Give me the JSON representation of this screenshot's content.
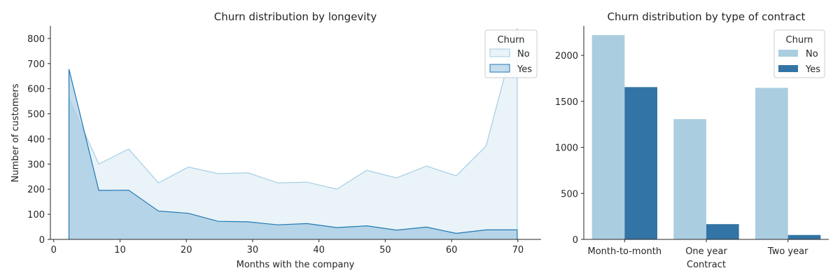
{
  "chart_data": [
    {
      "type": "area",
      "title": "Churn distribution by longevity",
      "xlabel": "Months with the company",
      "ylabel": "Number of customers",
      "xlim": [
        -0.5,
        73.5
      ],
      "ylim": [
        0,
        850
      ],
      "xticks": [
        0,
        10,
        20,
        30,
        40,
        50,
        60,
        70
      ],
      "yticks": [
        0,
        100,
        200,
        300,
        400,
        500,
        600,
        700,
        800
      ],
      "legend": {
        "title": "Churn",
        "placement": "top-right"
      },
      "x": [
        2.3,
        6.8,
        11.3,
        15.8,
        20.3,
        24.8,
        29.3,
        33.8,
        38.2,
        42.7,
        47.2,
        51.7,
        56.2,
        60.7,
        65.2,
        69.9
      ],
      "series": [
        {
          "name": "No",
          "color": "#a6cee3",
          "values": [
            560,
            300,
            360,
            225,
            288,
            262,
            265,
            225,
            228,
            200,
            275,
            245,
            292,
            253,
            372,
            840
          ]
        },
        {
          "name": "Yes",
          "color": "#1f78b4",
          "values": [
            678,
            195,
            196,
            113,
            104,
            72,
            70,
            58,
            63,
            47,
            54,
            37,
            49,
            24,
            38,
            38
          ]
        }
      ]
    },
    {
      "type": "bar",
      "title": "Churn distribution by type of contract",
      "xlabel": "Contract",
      "ylabel": "",
      "ylim": [
        0,
        2320
      ],
      "yticks": [
        0,
        500,
        1000,
        1500,
        2000
      ],
      "categories": [
        "Month-to-month",
        "One year",
        "Two year"
      ],
      "legend": {
        "title": "Churn",
        "placement": "top-right"
      },
      "series": [
        {
          "name": "No",
          "color": "#abcde0",
          "values": [
            2220,
            1307,
            1647
          ]
        },
        {
          "name": "Yes",
          "color": "#3274a5",
          "values": [
            1655,
            166,
            48
          ]
        }
      ]
    }
  ]
}
